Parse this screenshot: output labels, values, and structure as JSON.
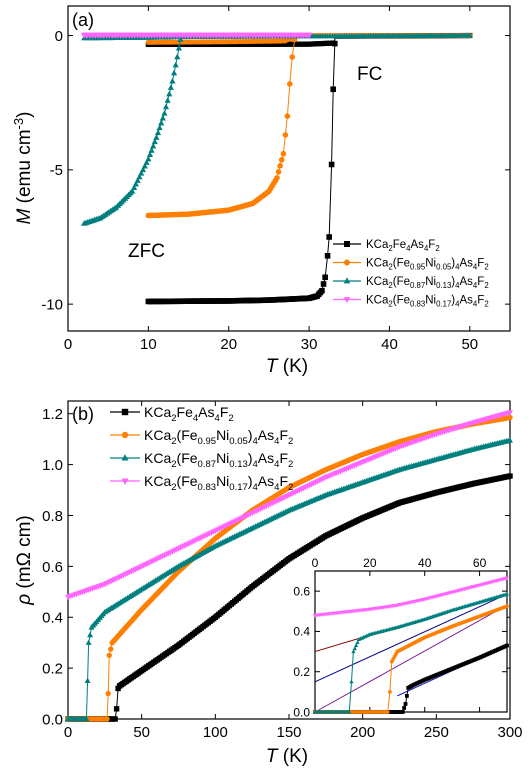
{
  "colors": {
    "x0": "#000000",
    "x05": "#ff7f00",
    "x13": "#007f7f",
    "x17": "#ff66ff"
  },
  "chart_data": [
    {
      "type": "scatter",
      "panel_label": "(a)",
      "xlabel": "T (K)",
      "ylabel": "M (emu cm-3)",
      "xlim": [
        0,
        55
      ],
      "ylim": [
        -11,
        1.1
      ],
      "x_ticks": [
        "0",
        "10",
        "20",
        "30",
        "40",
        "50"
      ],
      "y_ticks": [
        "0",
        "-5",
        "-10"
      ],
      "annotations": [
        "FC",
        "ZFC"
      ],
      "legend_position": "bottom-right",
      "series": [
        {
          "name": "KCa2Fe4As4F2",
          "color_key": "x0",
          "marker": "square",
          "zfc": [
            [
              10,
              -9.9
            ],
            [
              20,
              -9.88
            ],
            [
              25,
              -9.85
            ],
            [
              30,
              -9.78
            ],
            [
              31,
              -9.7
            ],
            [
              31.6,
              -9.5
            ],
            [
              32,
              -9.0
            ],
            [
              32.3,
              -8.2
            ],
            [
              32.5,
              -7.5
            ],
            [
              32.8,
              -4.8
            ],
            [
              33.0,
              -2.0
            ],
            [
              33.2,
              -0.3
            ]
          ],
          "fc": [
            [
              10,
              -0.33
            ],
            [
              20,
              -0.33
            ],
            [
              30,
              -0.32
            ],
            [
              33,
              -0.28
            ],
            [
              33.4,
              -0.02
            ],
            [
              50,
              0.0
            ]
          ]
        },
        {
          "name": "KCa2(Fe0.95Ni0.05)4As4F2",
          "color_key": "x05",
          "marker": "circle",
          "zfc": [
            [
              10,
              -6.7
            ],
            [
              15,
              -6.65
            ],
            [
              20,
              -6.5
            ],
            [
              23,
              -6.25
            ],
            [
              25,
              -5.8
            ],
            [
              26,
              -5.3
            ],
            [
              26.8,
              -4.4
            ],
            [
              27.3,
              -3.0
            ],
            [
              27.6,
              -1.8
            ],
            [
              27.9,
              -0.8
            ],
            [
              28.2,
              -0.15
            ]
          ],
          "fc": [
            [
              10,
              -0.25
            ],
            [
              20,
              -0.23
            ],
            [
              27,
              -0.2
            ],
            [
              28.5,
              0.0
            ],
            [
              50,
              0.0
            ]
          ]
        },
        {
          "name": "KCa2(Fe0.87Ni0.13)4As4F2",
          "color_key": "x13",
          "marker": "triangle-up",
          "zfc": [
            [
              2,
              -7.0
            ],
            [
              4,
              -6.8
            ],
            [
              6,
              -6.4
            ],
            [
              8,
              -5.8
            ],
            [
              10,
              -4.6
            ],
            [
              11,
              -3.8
            ],
            [
              12,
              -2.9
            ],
            [
              13,
              -1.7
            ],
            [
              13.6,
              -0.8
            ],
            [
              14.0,
              -0.15
            ]
          ],
          "fc": [
            [
              2,
              -0.1
            ],
            [
              10,
              -0.08
            ],
            [
              14,
              -0.05
            ],
            [
              50,
              0.0
            ]
          ]
        },
        {
          "name": "KCa2(Fe0.83Ni0.17)4As4F2",
          "color_key": "x17",
          "marker": "triangle-down",
          "zfc": [
            [
              2,
              0.0
            ],
            [
              30,
              0.0
            ]
          ],
          "fc": [
            [
              2,
              0.03
            ],
            [
              30,
              0.03
            ]
          ]
        }
      ]
    },
    {
      "type": "scatter",
      "panel_label": "(b)",
      "xlabel": "T (K)",
      "ylabel": "ρ (mΩ cm)",
      "xlim": [
        0,
        300
      ],
      "ylim": [
        0,
        1.25
      ],
      "x_ticks": [
        "0",
        "50",
        "100",
        "150",
        "200",
        "250",
        "300"
      ],
      "y_ticks": [
        "0.0",
        "0.2",
        "0.4",
        "0.6",
        "0.8",
        "1.0",
        "1.2"
      ],
      "legend_position": "top-left",
      "series": [
        {
          "name": "KCa2Fe4As4F2",
          "color_key": "x0",
          "marker": "square",
          "points": [
            [
              0,
              0
            ],
            [
              32,
              0
            ],
            [
              33,
              0.04
            ],
            [
              34,
              0.12
            ],
            [
              35,
              0.13
            ],
            [
              50,
              0.19
            ],
            [
              75,
              0.29
            ],
            [
              100,
              0.4
            ],
            [
              125,
              0.52
            ],
            [
              150,
              0.63
            ],
            [
              175,
              0.72
            ],
            [
              200,
              0.79
            ],
            [
              225,
              0.85
            ],
            [
              250,
              0.89
            ],
            [
              275,
              0.925
            ],
            [
              300,
              0.955
            ]
          ]
        },
        {
          "name": "KCa2(Fe0.95Ni0.05)4As4F2",
          "color_key": "x05",
          "marker": "circle",
          "points": [
            [
              0,
              0
            ],
            [
              26.5,
              0
            ],
            [
              27.3,
              0.1
            ],
            [
              28,
              0.25
            ],
            [
              30,
              0.3
            ],
            [
              50,
              0.43
            ],
            [
              75,
              0.58
            ],
            [
              100,
              0.71
            ],
            [
              125,
              0.82
            ],
            [
              150,
              0.91
            ],
            [
              175,
              0.98
            ],
            [
              200,
              1.04
            ],
            [
              225,
              1.09
            ],
            [
              250,
              1.13
            ],
            [
              275,
              1.16
            ],
            [
              300,
              1.185
            ]
          ]
        },
        {
          "name": "KCa2(Fe0.87Ni0.13)4As4F2",
          "color_key": "x13",
          "marker": "triangle-up",
          "points": [
            [
              0,
              0
            ],
            [
              12.5,
              0
            ],
            [
              13.3,
              0.15
            ],
            [
              14,
              0.3
            ],
            [
              16,
              0.36
            ],
            [
              25,
              0.42
            ],
            [
              50,
              0.51
            ],
            [
              75,
              0.6
            ],
            [
              100,
              0.68
            ],
            [
              125,
              0.75
            ],
            [
              150,
              0.82
            ],
            [
              175,
              0.88
            ],
            [
              200,
              0.93
            ],
            [
              225,
              0.98
            ],
            [
              250,
              1.02
            ],
            [
              275,
              1.06
            ],
            [
              300,
              1.095
            ]
          ]
        },
        {
          "name": "KCa2(Fe0.83Ni0.17)4As4F2",
          "color_key": "x17",
          "marker": "triangle-down",
          "points": [
            [
              0,
              0.48
            ],
            [
              25,
              0.53
            ],
            [
              50,
              0.6
            ],
            [
              75,
              0.67
            ],
            [
              100,
              0.74
            ],
            [
              125,
              0.81
            ],
            [
              150,
              0.88
            ],
            [
              175,
              0.95
            ],
            [
              200,
              1.01
            ],
            [
              225,
              1.07
            ],
            [
              250,
              1.12
            ],
            [
              275,
              1.165
            ],
            [
              300,
              1.205
            ]
          ]
        }
      ]
    },
    {
      "type": "scatter",
      "panel_label": "inset",
      "xlim": [
        0,
        70
      ],
      "ylim": [
        0,
        0.7
      ],
      "x_ticks": [
        "0",
        "20",
        "40",
        "60"
      ],
      "y_ticks": [
        "0.0",
        "0.2",
        "0.4",
        "0.6"
      ],
      "fit_lines": [
        {
          "color": "#8b0000",
          "from": [
            0,
            0.3
          ],
          "to": [
            70,
            0.585
          ]
        },
        {
          "color": "#00008b",
          "from": [
            0,
            0.15
          ],
          "to": [
            70,
            0.585
          ]
        },
        {
          "color": "#7b1fa2",
          "from": [
            0,
            0.0
          ],
          "to": [
            70,
            0.53
          ]
        },
        {
          "color": "#1f1fbf",
          "from": [
            30,
            0.08
          ],
          "to": [
            70,
            0.33
          ]
        }
      ],
      "series": [
        {
          "name": "KCa2Fe4As4F2",
          "color_key": "x0",
          "marker": "square",
          "points": [
            [
              0,
              0
            ],
            [
              32,
              0
            ],
            [
              33,
              0.04
            ],
            [
              34,
              0.12
            ],
            [
              36,
              0.135
            ],
            [
              40,
              0.16
            ],
            [
              50,
              0.215
            ],
            [
              60,
              0.27
            ],
            [
              70,
              0.33
            ]
          ]
        },
        {
          "name": "KCa2(Fe0.95Ni0.05)4As4F2",
          "color_key": "x05",
          "marker": "circle",
          "points": [
            [
              0,
              0
            ],
            [
              26.5,
              0
            ],
            [
              27.3,
              0.1
            ],
            [
              28,
              0.25
            ],
            [
              30,
              0.3
            ],
            [
              40,
              0.37
            ],
            [
              50,
              0.425
            ],
            [
              60,
              0.475
            ],
            [
              70,
              0.525
            ]
          ]
        },
        {
          "name": "KCa2(Fe0.87Ni0.13)4As4F2",
          "color_key": "x13",
          "marker": "triangle-up",
          "points": [
            [
              0,
              0
            ],
            [
              12.5,
              0
            ],
            [
              13.3,
              0.15
            ],
            [
              14,
              0.3
            ],
            [
              16,
              0.36
            ],
            [
              20,
              0.385
            ],
            [
              30,
              0.42
            ],
            [
              40,
              0.46
            ],
            [
              50,
              0.505
            ],
            [
              60,
              0.545
            ],
            [
              70,
              0.585
            ]
          ]
        },
        {
          "name": "KCa2(Fe0.83Ni0.17)4As4F2",
          "color_key": "x17",
          "marker": "triangle-down",
          "points": [
            [
              0,
              0.48
            ],
            [
              10,
              0.495
            ],
            [
              20,
              0.51
            ],
            [
              30,
              0.53
            ],
            [
              40,
              0.56
            ],
            [
              50,
              0.595
            ],
            [
              60,
              0.63
            ],
            [
              70,
              0.665
            ]
          ]
        }
      ]
    }
  ],
  "legend_labels": [
    {
      "key": "x0",
      "base": "KCa",
      "parts": [
        [
          "2",
          "sub"
        ],
        [
          "Fe",
          ""
        ],
        [
          "4",
          "sub"
        ],
        [
          "As",
          ""
        ],
        [
          "4",
          "sub"
        ],
        [
          "F",
          ""
        ],
        [
          "2",
          "sub"
        ]
      ]
    },
    {
      "key": "x05",
      "parts": [
        [
          "KCa",
          ""
        ],
        [
          "2",
          "sub"
        ],
        [
          "(Fe",
          ""
        ],
        [
          "0.95",
          "sub"
        ],
        [
          "Ni",
          ""
        ],
        [
          "0.05",
          "sub"
        ],
        [
          ")",
          ""
        ],
        [
          "4",
          "sub"
        ],
        [
          "As",
          ""
        ],
        [
          "4",
          "sub"
        ],
        [
          "F",
          ""
        ],
        [
          "2",
          "sub"
        ]
      ]
    },
    {
      "key": "x13",
      "parts": [
        [
          "KCa",
          ""
        ],
        [
          "2",
          "sub"
        ],
        [
          "(Fe",
          ""
        ],
        [
          "0.87",
          "sub"
        ],
        [
          "Ni",
          ""
        ],
        [
          "0.13",
          "sub"
        ],
        [
          ")",
          ""
        ],
        [
          "4",
          "sub"
        ],
        [
          "As",
          ""
        ],
        [
          "4",
          "sub"
        ],
        [
          "F",
          ""
        ],
        [
          "2",
          "sub"
        ]
      ]
    },
    {
      "key": "x17",
      "parts": [
        [
          "KCa",
          ""
        ],
        [
          "2",
          "sub"
        ],
        [
          "(Fe",
          ""
        ],
        [
          "0.83",
          "sub"
        ],
        [
          "Ni",
          ""
        ],
        [
          "0.17",
          "sub"
        ],
        [
          ")",
          ""
        ],
        [
          "4",
          "sub"
        ],
        [
          "As",
          ""
        ],
        [
          "4",
          "sub"
        ],
        [
          "F",
          ""
        ],
        [
          "2",
          "sub"
        ]
      ]
    }
  ]
}
